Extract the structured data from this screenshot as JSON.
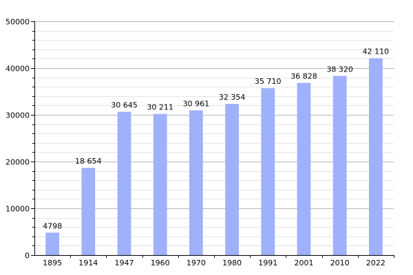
{
  "chart_data": {
    "type": "bar",
    "categories": [
      "1895",
      "1914",
      "1947",
      "1960",
      "1970",
      "1980",
      "1991",
      "2001",
      "2010",
      "2022"
    ],
    "values": [
      4798,
      18654,
      30645,
      30211,
      30961,
      32354,
      35710,
      36828,
      38320,
      42110
    ],
    "value_labels": [
      "4798",
      "18 654",
      "30 645",
      "30 211",
      "30 961",
      "32 354",
      "35 710",
      "36 828",
      "38 320",
      "42 110"
    ],
    "ylim": [
      0,
      50000
    ],
    "yticks": [
      0,
      10000,
      20000,
      30000,
      40000,
      50000
    ],
    "ytick_labels": [
      "0",
      "10000",
      "20000",
      "30000",
      "40000",
      "50000"
    ],
    "minor_step": 2000,
    "grid": true,
    "bar_color": "#9fb1fb",
    "title": "",
    "xlabel": "",
    "ylabel": ""
  }
}
